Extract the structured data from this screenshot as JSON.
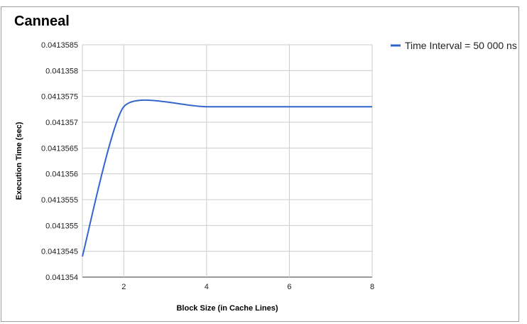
{
  "chart_data": {
    "type": "line",
    "title": "Canneal",
    "xlabel": "Block Size (in Cache Lines)",
    "ylabel": "Execution Time (sec)",
    "xlim": [
      1,
      8
    ],
    "ylim": [
      0.041354,
      0.0413585
    ],
    "x_ticks": [
      "2",
      "4",
      "6",
      "8"
    ],
    "y_ticks": [
      "0.0413585",
      "0.041358",
      "0.0413575",
      "0.041357",
      "0.0413565",
      "0.041356",
      "0.0413555",
      "0.041355",
      "0.0413545",
      "0.041354"
    ],
    "legend_position": "right",
    "grid": true,
    "series": [
      {
        "name": "Time Interval = 50 000 ns",
        "color": "#3366cc",
        "x": [
          1,
          2,
          4,
          8
        ],
        "y": [
          0.0413544,
          0.0413573,
          0.0413573,
          0.0413573
        ]
      }
    ]
  }
}
